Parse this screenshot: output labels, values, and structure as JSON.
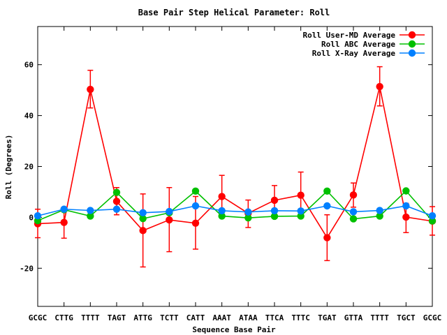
{
  "chart_data": {
    "type": "line",
    "title": "Base Pair Step Helical Parameter: Roll",
    "xlabel": "Sequence Base Pair",
    "ylabel": "Roll (Degrees)",
    "ylim": [
      -35,
      75
    ],
    "yticks": [
      -20,
      0,
      20,
      40,
      60
    ],
    "legend_position": "top-right",
    "grid": false,
    "categories": [
      "GCGC",
      "CTTG",
      "TTTT",
      "TAGT",
      "ATTG",
      "TCTT",
      "CATT",
      "AAAT",
      "ATAA",
      "TTCA",
      "TTTC",
      "TGAT",
      "GTTA",
      "TTTT",
      "TGCT",
      "GCGC"
    ],
    "series": [
      {
        "name": "Roll User-MD Average",
        "color": "#ff0000",
        "values": [
          -2.5,
          -2,
          50.3,
          6.3,
          -5.2,
          -1,
          -2.3,
          8.2,
          1.6,
          6.7,
          8.7,
          -8,
          8.8,
          51.4,
          0.1,
          -1.5
        ],
        "err_low": [
          -8,
          -8.2,
          43,
          1,
          -19.5,
          -13.5,
          -12.5,
          0.2,
          -4,
          1,
          0,
          -17,
          4,
          43.8,
          -6,
          -7
        ],
        "err_high": [
          3.2,
          4,
          57.8,
          11.7,
          9.2,
          11.7,
          8.2,
          16.5,
          6.8,
          12.5,
          17.8,
          1,
          13.5,
          59.2,
          5.5,
          4.2
        ]
      },
      {
        "name": "Roll ABC Average",
        "color": "#00c000",
        "values": [
          -1.3,
          3,
          0.5,
          9.8,
          -0.5,
          1.8,
          10.3,
          0.5,
          -0.2,
          0.4,
          0.5,
          10.3,
          -0.6,
          0.5,
          10.4,
          -1.4
        ]
      },
      {
        "name": "Roll X-Ray Average",
        "color": "#0080ff",
        "values": [
          0.6,
          3.2,
          2.7,
          3.2,
          1.8,
          2.3,
          4.5,
          2.6,
          2.1,
          2.6,
          2.5,
          4.5,
          2.2,
          2.7,
          4.5,
          0.6
        ]
      }
    ]
  }
}
